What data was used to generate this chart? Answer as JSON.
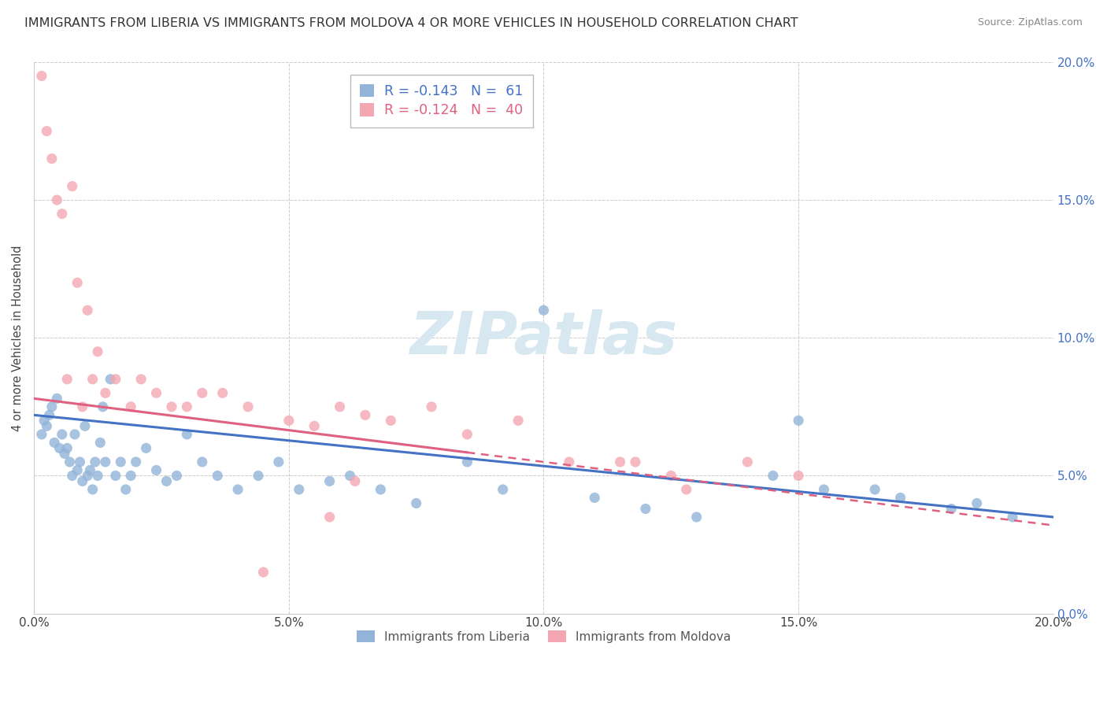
{
  "title": "IMMIGRANTS FROM LIBERIA VS IMMIGRANTS FROM MOLDOVA 4 OR MORE VEHICLES IN HOUSEHOLD CORRELATION CHART",
  "source": "Source: ZipAtlas.com",
  "ylabel": "4 or more Vehicles in Household",
  "legend_liberia": "Immigrants from Liberia",
  "legend_moldova": "Immigrants from Moldova",
  "R_liberia": -0.143,
  "N_liberia": 61,
  "R_moldova": -0.124,
  "N_moldova": 40,
  "color_liberia": "#92b4d9",
  "color_moldova": "#f4a7b2",
  "color_liberia_line": "#4472c4",
  "color_moldova_line": "#e06080",
  "xmin": 0.0,
  "xmax": 20.0,
  "ymin": 0.0,
  "ymax": 20.0,
  "y_ticks": [
    0,
    5,
    10,
    15,
    20
  ],
  "x_ticks": [
    0,
    5,
    10,
    15,
    20
  ],
  "liberia_x": [
    0.15,
    0.2,
    0.25,
    0.3,
    0.35,
    0.4,
    0.45,
    0.5,
    0.55,
    0.6,
    0.65,
    0.7,
    0.75,
    0.8,
    0.85,
    0.9,
    0.95,
    1.0,
    1.05,
    1.1,
    1.15,
    1.2,
    1.25,
    1.3,
    1.35,
    1.4,
    1.5,
    1.6,
    1.7,
    1.8,
    1.9,
    2.0,
    2.2,
    2.4,
    2.6,
    2.8,
    3.0,
    3.3,
    3.6,
    4.0,
    4.4,
    4.8,
    5.2,
    5.8,
    6.2,
    6.8,
    7.5,
    8.5,
    9.2,
    10.0,
    11.0,
    12.0,
    13.0,
    14.5,
    15.5,
    16.5,
    17.0,
    18.0,
    18.5,
    19.2,
    15.0
  ],
  "liberia_y": [
    6.5,
    7.0,
    6.8,
    7.2,
    7.5,
    6.2,
    7.8,
    6.0,
    6.5,
    5.8,
    6.0,
    5.5,
    5.0,
    6.5,
    5.2,
    5.5,
    4.8,
    6.8,
    5.0,
    5.2,
    4.5,
    5.5,
    5.0,
    6.2,
    7.5,
    5.5,
    8.5,
    5.0,
    5.5,
    4.5,
    5.0,
    5.5,
    6.0,
    5.2,
    4.8,
    5.0,
    6.5,
    5.5,
    5.0,
    4.5,
    5.0,
    5.5,
    4.5,
    4.8,
    5.0,
    4.5,
    4.0,
    5.5,
    4.5,
    11.0,
    4.2,
    3.8,
    3.5,
    5.0,
    4.5,
    4.5,
    4.2,
    3.8,
    4.0,
    3.5,
    7.0
  ],
  "moldova_x": [
    0.15,
    0.25,
    0.35,
    0.45,
    0.55,
    0.65,
    0.75,
    0.85,
    0.95,
    1.05,
    1.15,
    1.25,
    1.4,
    1.6,
    1.9,
    2.1,
    2.4,
    2.7,
    3.0,
    3.3,
    3.7,
    4.2,
    5.0,
    5.5,
    6.0,
    6.5,
    7.0,
    7.8,
    8.5,
    9.5,
    10.5,
    11.5,
    12.5,
    14.0,
    15.0,
    11.8,
    12.8,
    6.3,
    5.8,
    4.5
  ],
  "moldova_y": [
    19.5,
    17.5,
    16.5,
    15.0,
    14.5,
    8.5,
    15.5,
    12.0,
    7.5,
    11.0,
    8.5,
    9.5,
    8.0,
    8.5,
    7.5,
    8.5,
    8.0,
    7.5,
    7.5,
    8.0,
    8.0,
    7.5,
    7.0,
    6.8,
    7.5,
    7.2,
    7.0,
    7.5,
    6.5,
    7.0,
    5.5,
    5.5,
    5.0,
    5.5,
    5.0,
    5.5,
    4.5,
    4.8,
    3.5,
    1.5
  ],
  "line_liberia_x0": 0.0,
  "line_liberia_y0": 7.2,
  "line_liberia_x1": 20.0,
  "line_liberia_y1": 3.5,
  "line_moldova_x0": 0.0,
  "line_moldova_y0": 7.8,
  "line_moldova_x1": 20.0,
  "line_moldova_y1": 3.2,
  "line_moldova_solid_end": 8.5
}
